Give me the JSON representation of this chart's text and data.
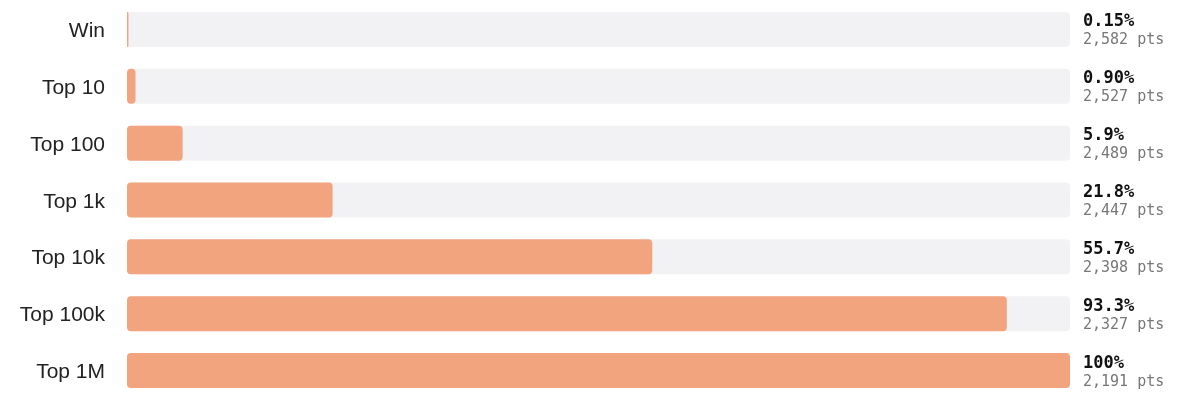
{
  "chart_data": {
    "type": "bar",
    "orientation": "horizontal",
    "categories": [
      "Win",
      "Top 10",
      "Top 100",
      "Top 1k",
      "Top 10k",
      "Top 100k",
      "Top 1M"
    ],
    "values": [
      0.15,
      0.9,
      5.9,
      21.8,
      55.7,
      93.3,
      100
    ],
    "value_labels": [
      "0.15%\n2,582 pts",
      "0.90%\n2,527 pts",
      "5.9%\n2,489 pts",
      "21.8%\n2,447 pts",
      "55.7%\n2,398 pts",
      "93.3%\n2,327 pts",
      "100%\n2,191 pts"
    ],
    "color": "#f2a47f",
    "xlim": [
      0,
      100
    ],
    "tick_labels": "y",
    "grid": false
  }
}
